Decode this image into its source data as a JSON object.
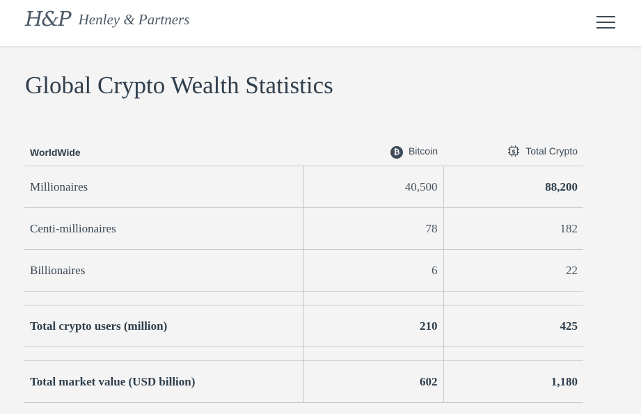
{
  "header": {
    "logo_mark": "H&P",
    "logo_name": "Henley & Partners",
    "menu_icon": "hamburger-menu-icon"
  },
  "page": {
    "title": "Global Crypto Wealth Statistics"
  },
  "table": {
    "columns": [
      {
        "label": "WorldWide"
      },
      {
        "label": "Bitcoin",
        "icon": "bitcoin-icon"
      },
      {
        "label": "Total Crypto",
        "icon": "crypto-chip-icon"
      }
    ],
    "rows": [
      {
        "label": "Millionaires",
        "bitcoin": "40,500",
        "total": "88,200"
      },
      {
        "label": "Centi-millionaires",
        "bitcoin": "78",
        "total": "182"
      },
      {
        "label": "Billionaires",
        "bitcoin": "6",
        "total": "22"
      },
      {
        "label": "Total crypto users (million)",
        "bitcoin": "210",
        "total": "425"
      },
      {
        "label": "Total market value (USD billion)",
        "bitcoin": "602",
        "total": "1,180"
      }
    ]
  }
}
